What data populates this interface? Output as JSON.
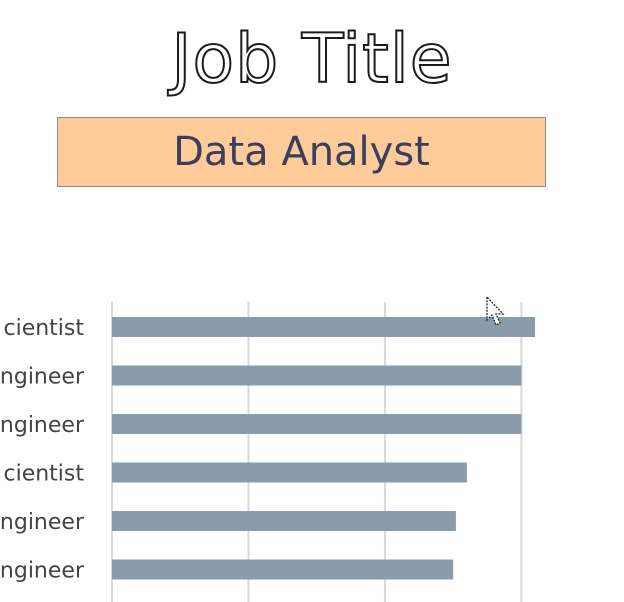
{
  "heading": "Job Title",
  "slicer": {
    "selected": "Data Analyst",
    "fill_color": "#ffcc99",
    "text_color": "#3a3f5c"
  },
  "chart_data": {
    "type": "bar",
    "orientation": "horizontal",
    "categories": [
      "cientist",
      "ngineer",
      "ngineer",
      "cientist",
      "ngineer",
      "ngineer"
    ],
    "values": [
      155,
      150,
      150,
      130,
      126,
      125
    ],
    "xlim": [
      0,
      170
    ],
    "grid": true,
    "bar_color": "#8a9bab"
  },
  "cursor_icon": "arrow-cursor-icon"
}
